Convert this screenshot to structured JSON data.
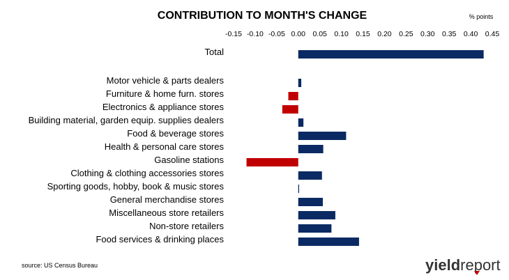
{
  "chart_data": {
    "type": "bar",
    "orientation": "horizontal",
    "title": "CONTRIBUTION TO MONTH'S CHANGE",
    "units_label": "% points",
    "xlim": [
      -0.15,
      0.45
    ],
    "xticks": [
      "-0.15",
      "-0.10",
      "-0.05",
      "0.00",
      "0.05",
      "0.10",
      "0.15",
      "0.20",
      "0.25",
      "0.30",
      "0.35",
      "0.40",
      "0.45"
    ],
    "axis_position": "top",
    "grid": false,
    "categories": [
      "Total",
      "Motor vehicle & parts dealers",
      "Furniture & home furn. stores",
      "Electronics & appliance stores",
      "Building material, garden equip. supplies dealers",
      "Food & beverage stores",
      "Health & personal care stores",
      "Gasoline stations",
      "Clothing & clothing accessories stores",
      "Sporting goods, hobby, book & music stores",
      "General merchandise stores",
      "Miscellaneous store retailers",
      "Non-store retailers",
      "Food services & drinking places"
    ],
    "values": [
      0.43,
      0.007,
      -0.023,
      -0.037,
      0.012,
      0.111,
      0.058,
      -0.12,
      0.055,
      0.002,
      0.057,
      0.086,
      0.077,
      0.141
    ],
    "colors": {
      "positive": "#0b2a63",
      "negative": "#c00000"
    }
  },
  "source": "source: US Census Bureau",
  "logo": {
    "bold": "yield",
    "regular": "report",
    "accent": "#c00000"
  }
}
